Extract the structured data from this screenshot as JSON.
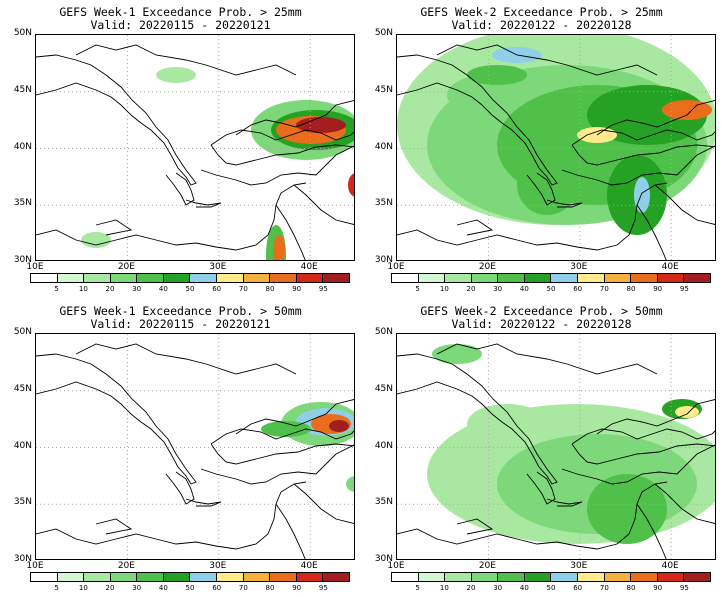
{
  "panels": [
    {
      "id": "w1-25",
      "title": "GEFS Week-1 Exceedance Prob. > 25mm",
      "valid": "Valid: 20220115 - 20220121"
    },
    {
      "id": "w2-25",
      "title": "GEFS Week-2 Exceedance Prob. > 25mm",
      "valid": "Valid: 20220122 - 20220128"
    },
    {
      "id": "w1-50",
      "title": "GEFS Week-1 Exceedance Prob. > 50mm",
      "valid": "Valid: 20220115 - 20220121"
    },
    {
      "id": "w2-50",
      "title": "GEFS Week-2 Exceedance Prob. > 50mm",
      "valid": "Valid: 20220122 - 20220128"
    }
  ],
  "lat_labels": [
    "50N",
    "45N",
    "40N",
    "35N",
    "30N"
  ],
  "lon_labels": [
    "10E",
    "20E",
    "30E",
    "40E"
  ],
  "colorbar": {
    "levels": [
      "5",
      "10",
      "20",
      "30",
      "40",
      "50",
      "60",
      "70",
      "80",
      "90",
      "95"
    ],
    "colors": [
      "#ffffff",
      "#d5f7d5",
      "#a8e8a0",
      "#7dd87a",
      "#4fc14b",
      "#25a224",
      "#8fcfe8",
      "#ffeb8a",
      "#f4b13e",
      "#e86d1c",
      "#d5281b",
      "#a31e1e"
    ]
  }
}
